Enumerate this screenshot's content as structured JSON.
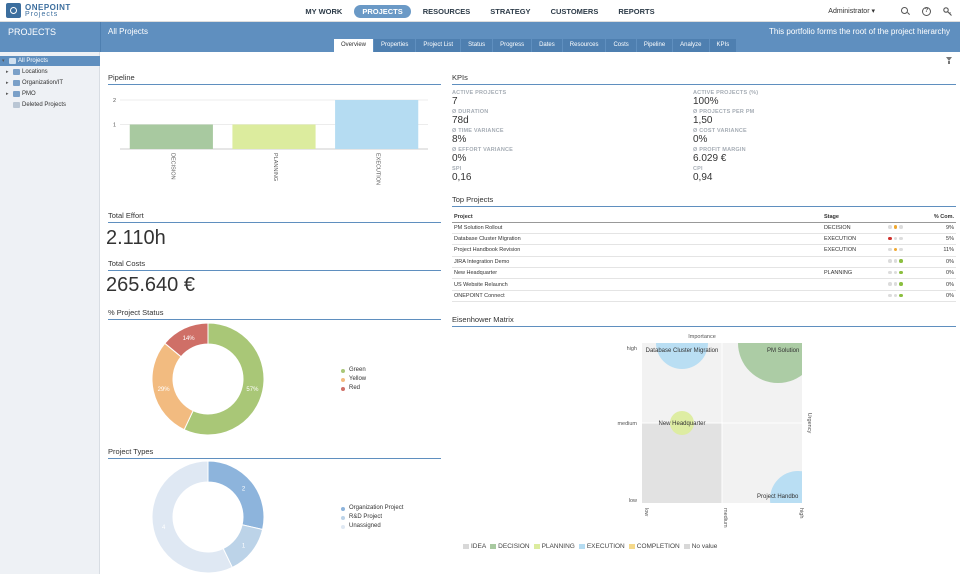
{
  "brand": {
    "line1": "ONEPOINT",
    "line2": "Projects"
  },
  "nav": [
    {
      "label": "MY WORK",
      "active": false
    },
    {
      "label": "PROJECTS",
      "active": true
    },
    {
      "label": "RESOURCES",
      "active": false
    },
    {
      "label": "STRATEGY",
      "active": false
    },
    {
      "label": "CUSTOMERS",
      "active": false
    },
    {
      "label": "REPORTS",
      "active": false
    }
  ],
  "user": {
    "label": "Administrator ▾"
  },
  "header": {
    "section": "PROJECTS",
    "title": "All Projects",
    "description": "This portfolio forms the root of the project hierarchy"
  },
  "tabs": [
    {
      "label": "Overview",
      "active": true
    },
    {
      "label": "Properties",
      "active": false
    },
    {
      "label": "Project List",
      "active": false
    },
    {
      "label": "Status",
      "active": false
    },
    {
      "label": "Progress",
      "active": false
    },
    {
      "label": "Dates",
      "active": false
    },
    {
      "label": "Resources",
      "active": false
    },
    {
      "label": "Costs",
      "active": false
    },
    {
      "label": "Pipeline",
      "active": false
    },
    {
      "label": "Analyze",
      "active": false
    },
    {
      "label": "KPIs",
      "active": false
    }
  ],
  "sidebar": {
    "items": [
      {
        "label": "All Projects",
        "arrow": "▾",
        "selected": true
      },
      {
        "label": "Locations",
        "arrow": "▸",
        "selected": false
      },
      {
        "label": "Organization/IT",
        "arrow": "▸",
        "selected": false
      },
      {
        "label": "PMO",
        "arrow": "▸",
        "selected": false
      },
      {
        "label": "Deleted Projects",
        "arrow": "",
        "selected": false
      }
    ]
  },
  "pipeline": {
    "title": "Pipeline",
    "chart_data": {
      "type": "bar",
      "categories": [
        "DECISION",
        "PLANNING",
        "EXECUTION"
      ],
      "values": [
        1,
        1,
        2
      ],
      "colors": [
        "#a8c9a0",
        "#dcec9e",
        "#b5dcf2"
      ],
      "ylim": [
        0,
        2
      ],
      "yticks": [
        "1",
        "2"
      ]
    }
  },
  "effort": {
    "title": "Total Effort",
    "value": "2.110h"
  },
  "costs": {
    "title": "Total Costs",
    "value": "265.640 €"
  },
  "status": {
    "title": "% Project Status",
    "chart_data": {
      "type": "pie",
      "series": [
        {
          "name": "Green",
          "value": 57,
          "label": "57%",
          "color": "#a9c777"
        },
        {
          "name": "Yellow",
          "value": 29,
          "label": "29%",
          "color": "#f2bb80"
        },
        {
          "name": "Red",
          "value": 14,
          "label": "14%",
          "color": "#cf6f67"
        }
      ]
    }
  },
  "types": {
    "title": "Project Types",
    "chart_data": {
      "type": "pie",
      "series": [
        {
          "name": "Organization Project",
          "value": 2,
          "label": "2",
          "color": "#8db4dc"
        },
        {
          "name": "R&D Project",
          "value": 1,
          "label": "1",
          "color": "#bcd3e8"
        },
        {
          "name": "Unassigned",
          "value": 4,
          "label": "4",
          "color": "#dfe8f3"
        }
      ]
    }
  },
  "kpis": {
    "title": "KPIs",
    "items": [
      {
        "label": "ACTIVE PROJECTS",
        "value": "7"
      },
      {
        "label": "ACTIVE PROJECTS (%)",
        "value": "100%"
      },
      {
        "label": "Ø DURATION",
        "value": "78d"
      },
      {
        "label": "Ø PROJECTS PER PM",
        "value": "1,50"
      },
      {
        "label": "Ø TIME VARIANCE",
        "value": "8%"
      },
      {
        "label": "Ø COST VARIANCE",
        "value": "0%"
      },
      {
        "label": "Ø EFFORT VARIANCE",
        "value": "0%"
      },
      {
        "label": "Ø PROFIT MARGIN",
        "value": "6.029 €"
      },
      {
        "label": "SPI",
        "value": "0,16"
      },
      {
        "label": "CPI",
        "value": "0,94"
      }
    ]
  },
  "top_projects": {
    "title": "Top Projects",
    "columns": {
      "project": "Project",
      "stage": "Stage",
      "complete": "% Com."
    },
    "rows": [
      {
        "name": "PM Solution Rollout",
        "stage": "DECISION",
        "complete": "9%",
        "light": "yellow"
      },
      {
        "name": "Database Cluster Migration",
        "stage": "EXECUTION",
        "complete": "5%",
        "light": "red"
      },
      {
        "name": "Project Handbook Revision",
        "stage": "EXECUTION",
        "complete": "11%",
        "light": "yellow"
      },
      {
        "name": "JIRA Integration Demo",
        "stage": "",
        "complete": "0%",
        "light": "green"
      },
      {
        "name": "New Headquarter",
        "stage": "PLANNING",
        "complete": "0%",
        "light": "green"
      },
      {
        "name": "US Website Relaunch",
        "stage": "",
        "complete": "0%",
        "light": "green"
      },
      {
        "name": "ONEPOINT Connect",
        "stage": "",
        "complete": "0%",
        "light": "green"
      }
    ],
    "light_colors": {
      "red": "#d0312d",
      "yellow": "#f0a830",
      "green": "#8bbf3f",
      "off": "#dcdcdc"
    }
  },
  "eisenhower": {
    "title": "Eisenhower Matrix",
    "chart_data": {
      "type": "scatter",
      "x_label": "Urgency",
      "y_label": "Importance",
      "x_ticks": [
        "low",
        "medium",
        "high"
      ],
      "y_ticks": [
        "high",
        "medium",
        "low"
      ],
      "points": [
        {
          "name": "Database Cluster Migration",
          "x": 1.5,
          "y": 3,
          "color": "#b5dcf2"
        },
        {
          "name": "PM Solution",
          "x": 2.7,
          "y": 3,
          "color": "#a8c9a0"
        },
        {
          "name": "New Headquarter",
          "x": 1.5,
          "y": 2,
          "color": "#dcec9e"
        },
        {
          "name": "Project Handbo",
          "x": 2.95,
          "y": 1.05,
          "color": "#b5dcf2"
        }
      ]
    },
    "legend": [
      {
        "name": "IDEA",
        "color": "#d8d8d8"
      },
      {
        "name": "DECISION",
        "color": "#a8c9a0"
      },
      {
        "name": "PLANNING",
        "color": "#dcec9e"
      },
      {
        "name": "EXECUTION",
        "color": "#b5dcf2"
      },
      {
        "name": "COMPLETION",
        "color": "#f5d98b"
      },
      {
        "name": "No value",
        "color": "#d8d8d8"
      }
    ]
  }
}
